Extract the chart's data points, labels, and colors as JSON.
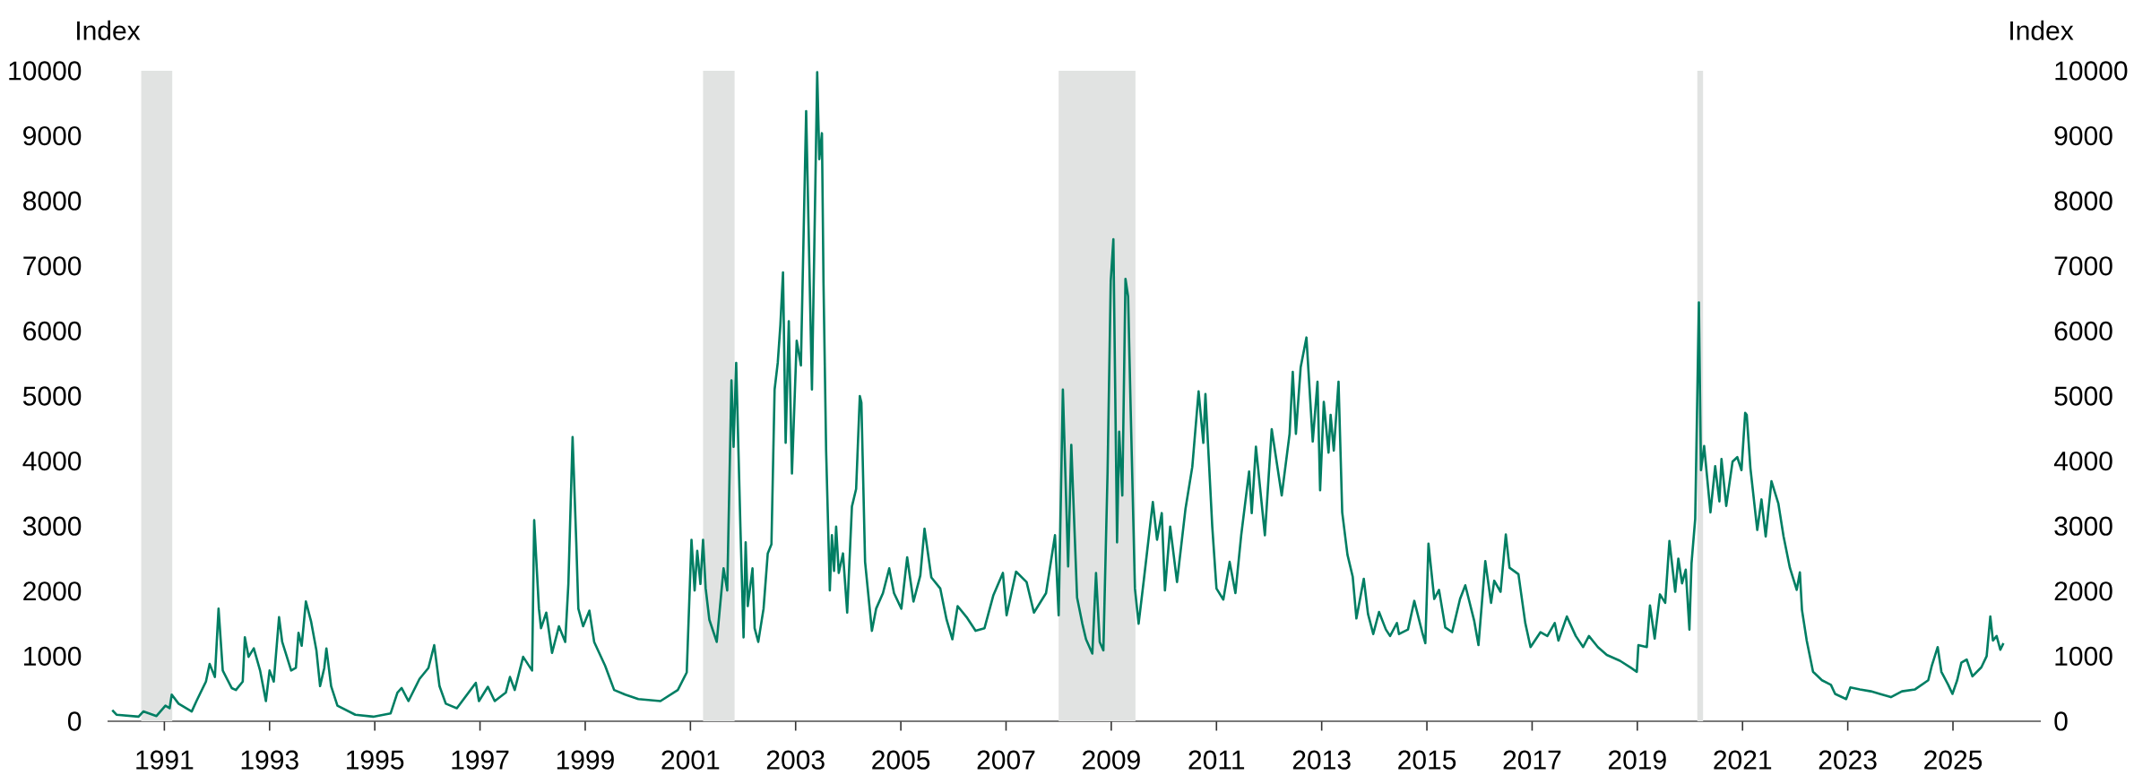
{
  "chart_data": {
    "type": "line",
    "ylabel": "Index",
    "y2label": "Index",
    "x": [
      1990.01,
      1990.09,
      1990.51,
      1990.6,
      1990.85,
      1991.02,
      1991.1,
      1991.14,
      1991.27,
      1991.52,
      1991.61,
      1991.79,
      1991.86,
      1991.96,
      1992.03,
      1992.11,
      1992.28,
      1992.36,
      1992.49,
      1992.53,
      1992.6,
      1992.7,
      1992.82,
      1992.93,
      1993.0,
      1993.08,
      1993.18,
      1993.24,
      1993.41,
      1993.5,
      1993.55,
      1993.61,
      1993.69,
      1993.79,
      1993.89,
      1993.96,
      1994.04,
      1994.08,
      1994.17,
      1994.29,
      1994.63,
      1994.97,
      1995.3,
      1995.43,
      1995.51,
      1995.64,
      1995.85,
      1996.02,
      1996.13,
      1996.23,
      1996.35,
      1996.56,
      1996.92,
      1996.98,
      1997.15,
      1997.28,
      1997.49,
      1997.57,
      1997.66,
      1997.82,
      1997.99,
      1998.03,
      1998.12,
      1998.16,
      1998.26,
      1998.37,
      1998.5,
      1998.62,
      1998.68,
      1998.76,
      1998.83,
      1998.87,
      1998.96,
      1999.08,
      1999.17,
      1999.38,
      1999.55,
      1999.76,
      2000.01,
      2000.43,
      2000.76,
      2000.93,
      2001.02,
      2001.08,
      2001.13,
      2001.19,
      2001.24,
      2001.29,
      2001.36,
      2001.5,
      2001.63,
      2001.7,
      2001.78,
      2001.82,
      2001.87,
      2001.95,
      2002.01,
      2002.05,
      2002.09,
      2002.18,
      2002.22,
      2002.29,
      2002.39,
      2002.47,
      2002.54,
      2002.6,
      2002.66,
      2002.71,
      2002.76,
      2002.81,
      2002.87,
      2002.93,
      2003.02,
      2003.1,
      2003.2,
      2003.31,
      2003.41,
      2003.45,
      2003.5,
      2003.53,
      2003.58,
      2003.65,
      2003.69,
      2003.73,
      2003.77,
      2003.82,
      2003.9,
      2003.98,
      2004.07,
      2004.15,
      2004.22,
      2004.25,
      2004.32,
      2004.45,
      2004.53,
      2004.66,
      2004.78,
      2004.87,
      2005.01,
      2005.12,
      2005.24,
      2005.37,
      2005.45,
      2005.58,
      2005.75,
      2005.87,
      2005.98,
      2006.08,
      2006.25,
      2006.42,
      2006.59,
      2006.76,
      2006.94,
      2007.01,
      2007.19,
      2007.39,
      2007.53,
      2007.76,
      2007.93,
      2008.0,
      2008.08,
      2008.18,
      2008.24,
      2008.35,
      2008.45,
      2008.52,
      2008.64,
      2008.71,
      2008.78,
      2008.85,
      2008.93,
      2008.99,
      2009.04,
      2009.11,
      2009.15,
      2009.21,
      2009.27,
      2009.32,
      2009.37,
      2009.45,
      2009.52,
      2009.62,
      2009.79,
      2009.87,
      2009.96,
      2010.02,
      2010.12,
      2010.25,
      2010.41,
      2010.54,
      2010.66,
      2010.75,
      2010.79,
      2010.92,
      2011.0,
      2011.13,
      2011.25,
      2011.36,
      2011.47,
      2011.62,
      2011.67,
      2011.75,
      2011.92,
      2012.05,
      2012.24,
      2012.39,
      2012.45,
      2012.51,
      2012.6,
      2012.71,
      2012.83,
      2012.92,
      2012.97,
      2013.04,
      2013.13,
      2013.17,
      2013.23,
      2013.32,
      2013.39,
      2013.49,
      2013.59,
      2013.66,
      2013.8,
      2013.88,
      2013.98,
      2014.09,
      2014.22,
      2014.3,
      2014.43,
      2014.47,
      2014.64,
      2014.76,
      2014.91,
      2014.97,
      2015.03,
      2015.14,
      2015.23,
      2015.35,
      2015.48,
      2015.63,
      2015.73,
      2015.9,
      2015.98,
      2016.11,
      2016.22,
      2016.28,
      2016.4,
      2016.5,
      2016.57,
      2016.74,
      2016.87,
      2016.97,
      2017.16,
      2017.29,
      2017.43,
      2017.5,
      2017.66,
      2017.83,
      2017.97,
      2018.08,
      2018.25,
      2018.42,
      2018.67,
      2018.88,
      2018.99,
      2019.02,
      2019.18,
      2019.24,
      2019.33,
      2019.43,
      2019.53,
      2019.61,
      2019.72,
      2019.78,
      2019.85,
      2019.92,
      2019.99,
      2020.03,
      2020.1,
      2020.17,
      2020.21,
      2020.27,
      2020.39,
      2020.48,
      2020.56,
      2020.6,
      2020.69,
      2020.81,
      2020.9,
      2020.98,
      2021.05,
      2021.08,
      2021.15,
      2021.28,
      2021.36,
      2021.44,
      2021.55,
      2021.68,
      2021.78,
      2021.9,
      2022.03,
      2022.09,
      2022.13,
      2022.22,
      2022.34,
      2022.51,
      2022.68,
      2022.76,
      2022.97,
      2023.05,
      2023.23,
      2023.44,
      2023.61,
      2023.82,
      2024.03,
      2024.28,
      2024.53,
      2024.6,
      2024.71,
      2024.78,
      2024.91,
      2024.99,
      2025.08,
      2025.16,
      2025.26,
      2025.37,
      2025.54,
      2025.64,
      2025.71,
      2025.76,
      2025.83,
      2025.9,
      2025.96
    ],
    "series": [
      {
        "color": "#007e63",
        "values": [
          170,
          100,
          70,
          150,
          80,
          240,
          200,
          410,
          270,
          150,
          310,
          610,
          880,
          680,
          1730,
          780,
          510,
          480,
          610,
          1290,
          990,
          1120,
          780,
          310,
          780,
          610,
          1600,
          1220,
          780,
          820,
          1360,
          1160,
          1840,
          1530,
          1090,
          540,
          820,
          1120,
          540,
          240,
          100,
          70,
          120,
          440,
          510,
          310,
          650,
          820,
          1170,
          540,
          270,
          200,
          590,
          310,
          530,
          310,
          440,
          680,
          480,
          990,
          780,
          3090,
          1730,
          1430,
          1670,
          1050,
          1460,
          1220,
          2110,
          4370,
          2750,
          1730,
          1460,
          1700,
          1220,
          850,
          480,
          410,
          340,
          310,
          480,
          750,
          2790,
          2010,
          2620,
          2110,
          2790,
          2040,
          1560,
          1220,
          2350,
          2010,
          5240,
          4220,
          5510,
          2990,
          1290,
          2750,
          1770,
          2350,
          1430,
          1220,
          1730,
          2580,
          2720,
          5100,
          5510,
          6090,
          6900,
          4280,
          6150,
          3810,
          5850,
          5470,
          9380,
          5100,
          9980,
          8640,
          9040,
          6730,
          4150,
          2010,
          2860,
          2310,
          2990,
          2280,
          2580,
          1670,
          3300,
          3570,
          5000,
          4900,
          2450,
          1390,
          1730,
          1970,
          2350,
          1970,
          1730,
          2520,
          1840,
          2240,
          2960,
          2210,
          2040,
          1560,
          1260,
          1770,
          1600,
          1390,
          1430,
          1940,
          2280,
          1630,
          2300,
          2140,
          1670,
          1970,
          2860,
          1630,
          5100,
          2380,
          4250,
          1900,
          1500,
          1260,
          1040,
          2280,
          1220,
          1090,
          3840,
          6770,
          7410,
          2750,
          4450,
          3470,
          6800,
          6530,
          4760,
          2040,
          1500,
          2180,
          3370,
          2790,
          3200,
          2010,
          2990,
          2140,
          3260,
          3910,
          5070,
          4280,
          5030,
          2990,
          2040,
          1870,
          2450,
          1970,
          2860,
          3840,
          3200,
          4220,
          2860,
          4490,
          3470,
          4420,
          5370,
          4420,
          5440,
          5900,
          4300,
          5220,
          3550,
          4910,
          4130,
          4710,
          4160,
          5220,
          3210,
          2560,
          2220,
          1580,
          2190,
          1650,
          1340,
          1680,
          1410,
          1310,
          1510,
          1340,
          1410,
          1850,
          1370,
          1200,
          2730,
          1880,
          2020,
          1440,
          1370,
          1880,
          2090,
          1540,
          1170,
          2460,
          1820,
          2160,
          1990,
          2870,
          2360,
          2260,
          1510,
          1140,
          1370,
          1310,
          1510,
          1240,
          1610,
          1310,
          1140,
          1310,
          1140,
          1020,
          930,
          820,
          760,
          1170,
          1140,
          1780,
          1270,
          1950,
          1820,
          2770,
          1990,
          2500,
          2120,
          2330,
          1410,
          2430,
          3110,
          6440,
          3860,
          4230,
          3210,
          3920,
          3380,
          4030,
          3310,
          3990,
          4060,
          3860,
          4740,
          4710,
          3890,
          2940,
          3410,
          2840,
          3690,
          3350,
          2840,
          2360,
          2020,
          2290,
          1710,
          1240,
          760,
          630,
          560,
          420,
          340,
          520,
          490,
          460,
          420,
          370,
          460,
          490,
          630,
          860,
          1140,
          760,
          560,
          420,
          630,
          900,
          950,
          690,
          830,
          1000,
          1610,
          1240,
          1310,
          1100,
          1200
        ]
      }
    ],
    "xlim": [
      1989.92,
      2026.67
    ],
    "xticks": [
      1991,
      1993,
      1995,
      1997,
      1999,
      2001,
      2003,
      2005,
      2007,
      2009,
      2011,
      2013,
      2015,
      2017,
      2019,
      2021,
      2023,
      2025
    ],
    "ylim": [
      0,
      10000
    ],
    "yticks": [
      0,
      1000,
      2000,
      3000,
      4000,
      5000,
      6000,
      7000,
      8000,
      9000,
      10000
    ],
    "y2lim": [
      0,
      10000
    ],
    "y2ticks": [
      0,
      1000,
      2000,
      3000,
      4000,
      5000,
      6000,
      7000,
      8000,
      9000,
      10000
    ],
    "bands": [
      {
        "axis": "x",
        "from": 1990.56,
        "to": 1991.15,
        "color": "#e1e3e2"
      },
      {
        "axis": "x",
        "from": 2001.24,
        "to": 2001.84,
        "color": "#e1e3e2"
      },
      {
        "axis": "x",
        "from": 2008.0,
        "to": 2009.46,
        "color": "#e1e3e2"
      },
      {
        "axis": "x",
        "from": 2020.14,
        "to": 2020.25,
        "color": "#e1e3e2"
      }
    ]
  }
}
